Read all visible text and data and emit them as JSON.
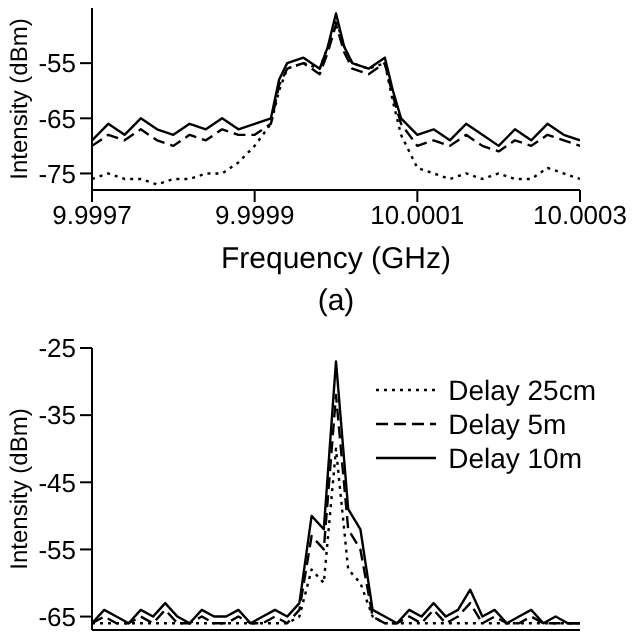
{
  "chart_data": [
    {
      "type": "line",
      "xlabel": "Frequency (GHz)",
      "ylabel": "Intensity (dBm)",
      "annotations": [
        "(a)"
      ],
      "x": [
        9.9997,
        9.99972,
        9.99974,
        9.99976,
        9.99978,
        9.9998,
        9.99982,
        9.99984,
        9.99986,
        9.99988,
        9.9999,
        9.99992,
        9.99993,
        9.99994,
        9.99996,
        9.99998,
        9.99999,
        10.0,
        10.00001,
        10.00002,
        10.00004,
        10.00006,
        10.00007,
        10.00008,
        10.0001,
        10.00012,
        10.00014,
        10.00016,
        10.00018,
        10.0002,
        10.00022,
        10.00024,
        10.00026,
        10.00028,
        10.0003
      ],
      "series": [
        {
          "color": "#000000",
          "line_style": "dotted",
          "values": [
            -76,
            -75,
            -76,
            -76,
            -77,
            -76,
            -76,
            -75,
            -75,
            -73,
            -70,
            -66,
            -60,
            -56,
            -55,
            -56,
            -52,
            -47,
            -52,
            -55,
            -56,
            -55,
            -62,
            -68,
            -74,
            -75,
            -76,
            -75,
            -76,
            -75,
            -76,
            -76,
            -74,
            -75,
            -76
          ]
        },
        {
          "color": "#000000",
          "line_style": "dashed",
          "values": [
            -70,
            -68,
            -69,
            -67,
            -69,
            -70,
            -68,
            -69,
            -67,
            -68,
            -68,
            -66,
            -59,
            -56,
            -55,
            -57,
            -53,
            -48,
            -53,
            -56,
            -57,
            -55,
            -61,
            -66,
            -70,
            -69,
            -70,
            -68,
            -70,
            -71,
            -69,
            -70,
            -68,
            -69,
            -70
          ]
        },
        {
          "color": "#000000",
          "line_style": "solid",
          "values": [
            -69,
            -66,
            -68,
            -65,
            -67,
            -68,
            -66,
            -67,
            -65,
            -67,
            -66,
            -65,
            -58,
            -55,
            -54,
            -56,
            -52,
            -46,
            -52,
            -55,
            -56,
            -54,
            -60,
            -65,
            -68,
            -67,
            -69,
            -66,
            -68,
            -70,
            -67,
            -69,
            -66,
            -68,
            -69
          ]
        }
      ],
      "xlim": [
        9.9997,
        10.0003
      ],
      "xticks": [
        9.9997,
        9.9999,
        10.0001,
        10.0003
      ],
      "ylim": [
        -78,
        -45
      ],
      "yticks": [
        -75,
        -65,
        -55
      ]
    },
    {
      "type": "line",
      "ylabel": "Intensity (dBm)",
      "legend": "top right",
      "tick_labels": "y",
      "categories": [
        null,
        null,
        null,
        null,
        null,
        null,
        null,
        null,
        null,
        null,
        null,
        null,
        null,
        null,
        null,
        null,
        null,
        null,
        null,
        null,
        null,
        null,
        null,
        null,
        null,
        null,
        null,
        null,
        null,
        null,
        null,
        null,
        null,
        null,
        null,
        null,
        null,
        null,
        null,
        null,
        null
      ],
      "series": [
        {
          "name": "Delay 25cm",
          "color": "#000000",
          "line_style": "dotted",
          "values": [
            -66,
            -66,
            -66,
            -66,
            -66,
            -66,
            -66,
            -66,
            -66,
            -66,
            -66,
            -66,
            -66,
            -66,
            -66,
            -66,
            -66,
            -65,
            -58,
            -60,
            -40,
            -58,
            -60,
            -65,
            -66,
            -66,
            -66,
            -66,
            -66,
            -66,
            -66,
            -66,
            -66,
            -66,
            -66,
            -66,
            -66,
            -66,
            -66,
            -66,
            -66
          ]
        },
        {
          "name": "Delay 5m",
          "color": "#000000",
          "line_style": "dashed",
          "values": [
            -66,
            -65,
            -66,
            -66,
            -65,
            -66,
            -64,
            -66,
            -66,
            -65,
            -66,
            -66,
            -65,
            -66,
            -66,
            -65,
            -66,
            -64,
            -53,
            -55,
            -32,
            -52,
            -55,
            -65,
            -66,
            -66,
            -65,
            -66,
            -64,
            -66,
            -65,
            -63,
            -66,
            -65,
            -66,
            -66,
            -65,
            -66,
            -66,
            -66,
            -66
          ]
        },
        {
          "name": "Delay 10m",
          "color": "#000000",
          "line_style": "solid",
          "values": [
            -66,
            -64,
            -65,
            -66,
            -64,
            -65,
            -63,
            -65,
            -66,
            -64,
            -65,
            -65,
            -64,
            -66,
            -65,
            -64,
            -65,
            -63,
            -50,
            -52,
            -27,
            -49,
            -52,
            -64,
            -65,
            -66,
            -64,
            -65,
            -63,
            -65,
            -64,
            -61,
            -65,
            -64,
            -66,
            -65,
            -64,
            -66,
            -65,
            -66,
            -66
          ]
        }
      ],
      "ylim": [
        -67,
        -25
      ],
      "yticks": [
        -25,
        -35,
        -45,
        -55,
        -65
      ]
    }
  ]
}
